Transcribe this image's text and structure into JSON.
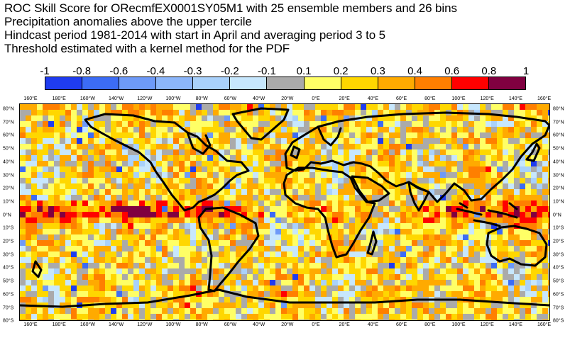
{
  "title_lines": [
    "ROC Skill Score for ORecmfEX0001SY05M1 with 25 ensemble members and 26 bins",
    "Precipitation anomalies above the upper tercile",
    "Hindcast period 1981-2014 with start in April and averaging period  3 to  5",
    "Threshold estimated with a kernel method for the PDF"
  ],
  "colorbar": {
    "labels": [
      "-1",
      "-0.8",
      "-0.6",
      "-0.4",
      "-0.3",
      "-0.2",
      "-0.1",
      "0.1",
      "0.2",
      "0.3",
      "0.4",
      "0.6",
      "0.8",
      "1"
    ],
    "colors": [
      "#1f3cf0",
      "#3c6cf5",
      "#6e9af8",
      "#8cb6fa",
      "#a9d1fb",
      "#c7e7fd",
      "#aaaaaa",
      "#ffff66",
      "#ffd700",
      "#ffaa00",
      "#ff7f00",
      "#ff0000",
      "#800040"
    ]
  },
  "map": {
    "lon_labels": [
      "160°E",
      "180°E",
      "160°W",
      "140°W",
      "120°W",
      "100°W",
      "80°W",
      "60°W",
      "40°W",
      "20°W",
      "0°E",
      "20°E",
      "40°E",
      "60°E",
      "80°E",
      "100°E",
      "120°E",
      "140°E",
      "160°E"
    ],
    "lat_labels": [
      "80°N",
      "70°N",
      "60°N",
      "50°N",
      "40°N",
      "30°N",
      "20°N",
      "10°N",
      "0°N",
      "10°S",
      "20°S",
      "30°S",
      "40°S",
      "50°S",
      "60°S",
      "70°S",
      "80°S"
    ]
  }
}
